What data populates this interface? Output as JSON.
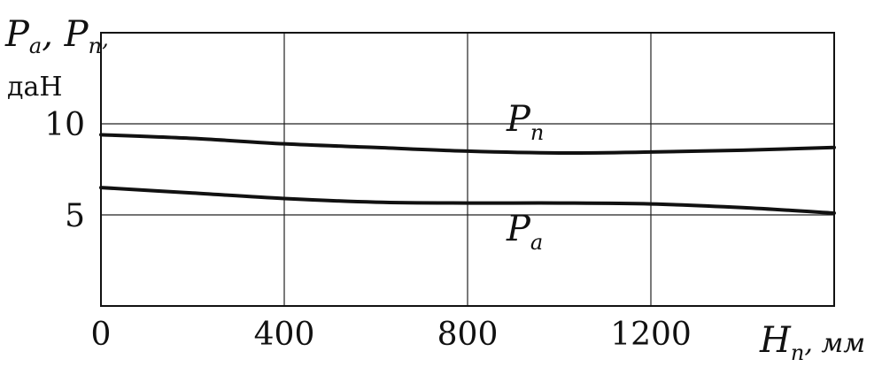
{
  "chart_data": {
    "type": "line",
    "title": "",
    "ylabel_parts": [
      "P",
      "а",
      ", ",
      "P",
      "п",
      ","
    ],
    "yunit": "даН",
    "xlabel_parts": [
      "H",
      "п",
      ", мм"
    ],
    "xlim": [
      0,
      1600
    ],
    "ylim": [
      0,
      15
    ],
    "x_ticks": [
      0,
      400,
      800,
      1200
    ],
    "y_ticks": [
      5,
      10
    ],
    "x_tick_labels": [
      "0",
      "400",
      "800",
      "1200"
    ],
    "y_tick_labels": [
      "5",
      "10"
    ],
    "grid": true,
    "series": [
      {
        "label_main": "P",
        "label_sub": "п",
        "x": [
          0,
          200,
          400,
          600,
          800,
          1000,
          1200,
          1400,
          1600
        ],
        "y": [
          9.4,
          9.2,
          8.9,
          8.7,
          8.5,
          8.4,
          8.45,
          8.55,
          8.7
        ]
      },
      {
        "label_main": "P",
        "label_sub": "а",
        "x": [
          0,
          200,
          400,
          600,
          800,
          1000,
          1200,
          1400,
          1600
        ],
        "y": [
          6.5,
          6.2,
          5.9,
          5.7,
          5.65,
          5.65,
          5.6,
          5.4,
          5.1
        ]
      }
    ]
  }
}
